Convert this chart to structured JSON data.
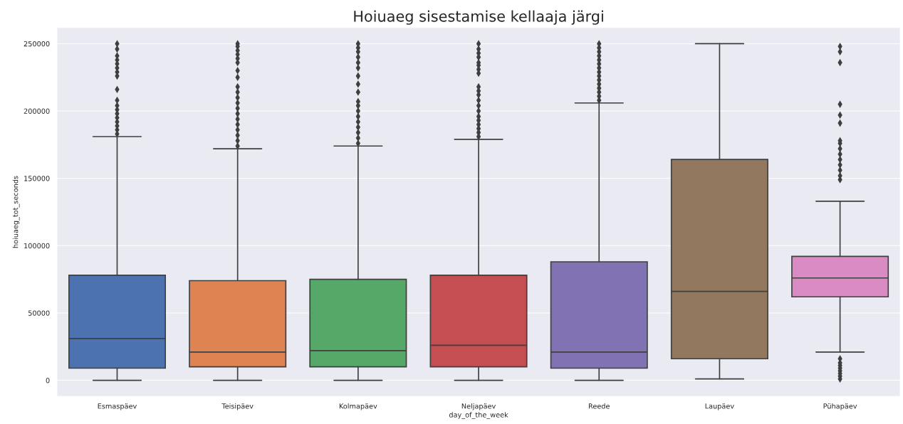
{
  "chart_data": {
    "type": "box",
    "title": "Hoiuaeg sisestamise kellaaja järgi",
    "xlabel": "day_of_the_week",
    "ylabel": "hoiuaeg_tot_seconds",
    "categories": [
      "Esmaspäev",
      "Teisipäev",
      "Kolmapäev",
      "Neljapäev",
      "Reede",
      "Laupäev",
      "Pühapäev"
    ],
    "colors": [
      "#4c72b0",
      "#dd8452",
      "#55a868",
      "#c44e52",
      "#8172b3",
      "#937860",
      "#da8bc3"
    ],
    "boxes": [
      {
        "low": 0,
        "q1": 9000,
        "median": 31000,
        "q3": 78000,
        "high": 181000,
        "outliers": [
          183000,
          186000,
          189000,
          192000,
          195000,
          198000,
          201000,
          204000,
          208000,
          216000,
          226000,
          229000,
          232000,
          235000,
          238000,
          241000,
          246000,
          250000
        ]
      },
      {
        "low": 0,
        "q1": 10000,
        "median": 21000,
        "q3": 74000,
        "high": 172000,
        "outliers": [
          174000,
          178000,
          182000,
          186000,
          190000,
          194000,
          198000,
          202000,
          206000,
          210000,
          214000,
          218000,
          225000,
          230000,
          236000,
          239000,
          242000,
          245000,
          248000,
          250000
        ]
      },
      {
        "low": 0,
        "q1": 10000,
        "median": 22000,
        "q3": 75000,
        "high": 174000,
        "outliers": [
          176000,
          180000,
          184000,
          188000,
          192000,
          196000,
          200000,
          204000,
          207000,
          214000,
          220000,
          226000,
          232000,
          236000,
          240000,
          244000,
          247000,
          250000
        ]
      },
      {
        "low": 0,
        "q1": 10000,
        "median": 26000,
        "q3": 78000,
        "high": 179000,
        "outliers": [
          181000,
          184000,
          187000,
          190000,
          193000,
          196000,
          200000,
          204000,
          208000,
          212000,
          215000,
          218000,
          228000,
          231000,
          234000,
          236000,
          240000,
          243000,
          246000,
          250000
        ]
      },
      {
        "low": 0,
        "q1": 9000,
        "median": 21000,
        "q3": 88000,
        "high": 206000,
        "outliers": [
          208000,
          211000,
          214000,
          217000,
          220000,
          223000,
          226000,
          229000,
          232000,
          235000,
          238000,
          241000,
          244000,
          247000,
          250000
        ]
      },
      {
        "low": 1000,
        "q1": 16000,
        "median": 66000,
        "q3": 164000,
        "high": 250000
      },
      {
        "low": 21000,
        "q1": 62000,
        "median": 76000,
        "q3": 92000,
        "high": 133000,
        "outliers": [
          1000,
          3000,
          5000,
          7000,
          9000,
          11000,
          13000,
          16000,
          149000,
          152000,
          156000,
          160000,
          164000,
          168000,
          172000,
          176000,
          178000,
          191000,
          197000,
          205000,
          236000,
          244000,
          248000
        ]
      }
    ],
    "ylim": [
      -12000,
      262000
    ],
    "yticks": [
      0,
      50000,
      100000,
      150000,
      200000,
      250000
    ],
    "grid": "y"
  }
}
